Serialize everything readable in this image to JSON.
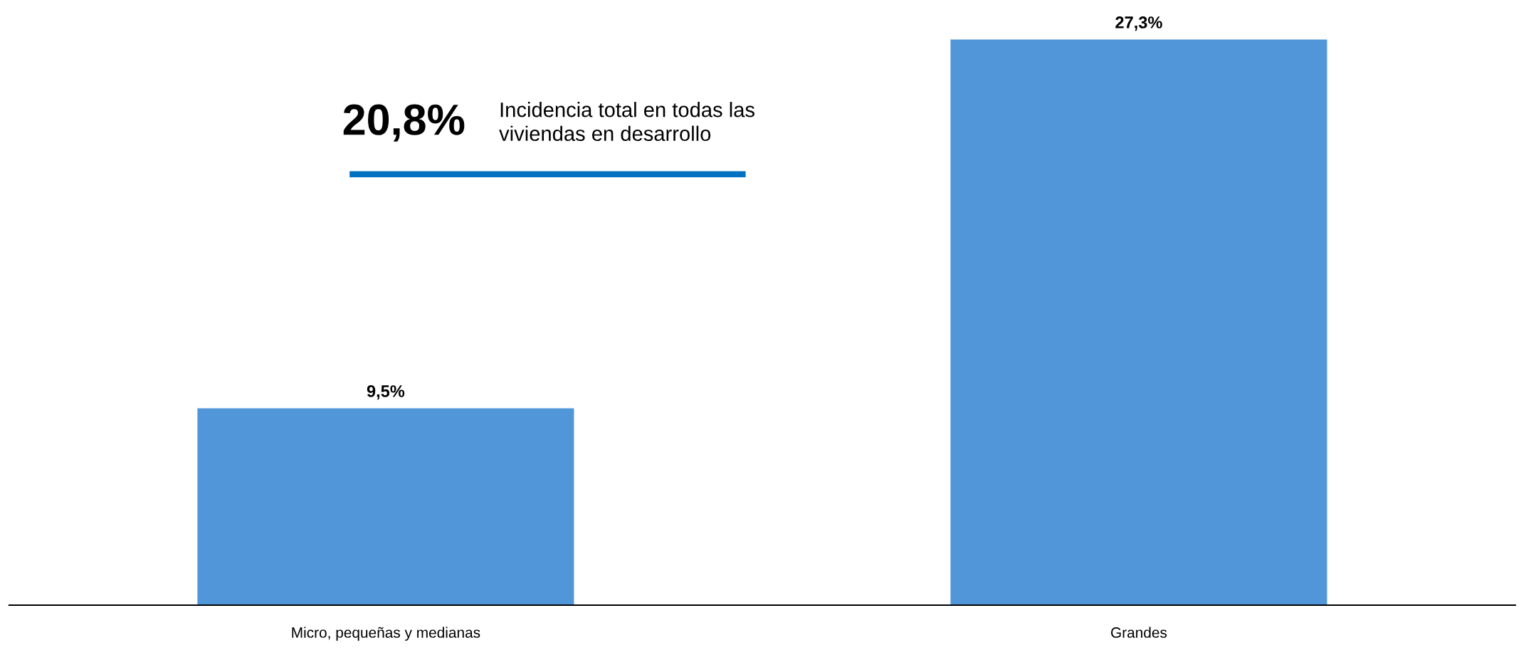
{
  "chart_data": {
    "type": "bar",
    "categories": [
      "Micro, pequeñas y medianas",
      "Grandes"
    ],
    "values": [
      9.5,
      27.3
    ],
    "value_labels": [
      "9,5%",
      "27,3%"
    ],
    "color": "#5096d9",
    "annotations": [
      "20,8%",
      "Incidencia total en todas las\nviviendas en desarrollo"
    ],
    "ref_lines": [
      {
        "axis": "y",
        "value": 20.8,
        "color": "#0070c0"
      }
    ],
    "grid": false,
    "legend": false
  }
}
